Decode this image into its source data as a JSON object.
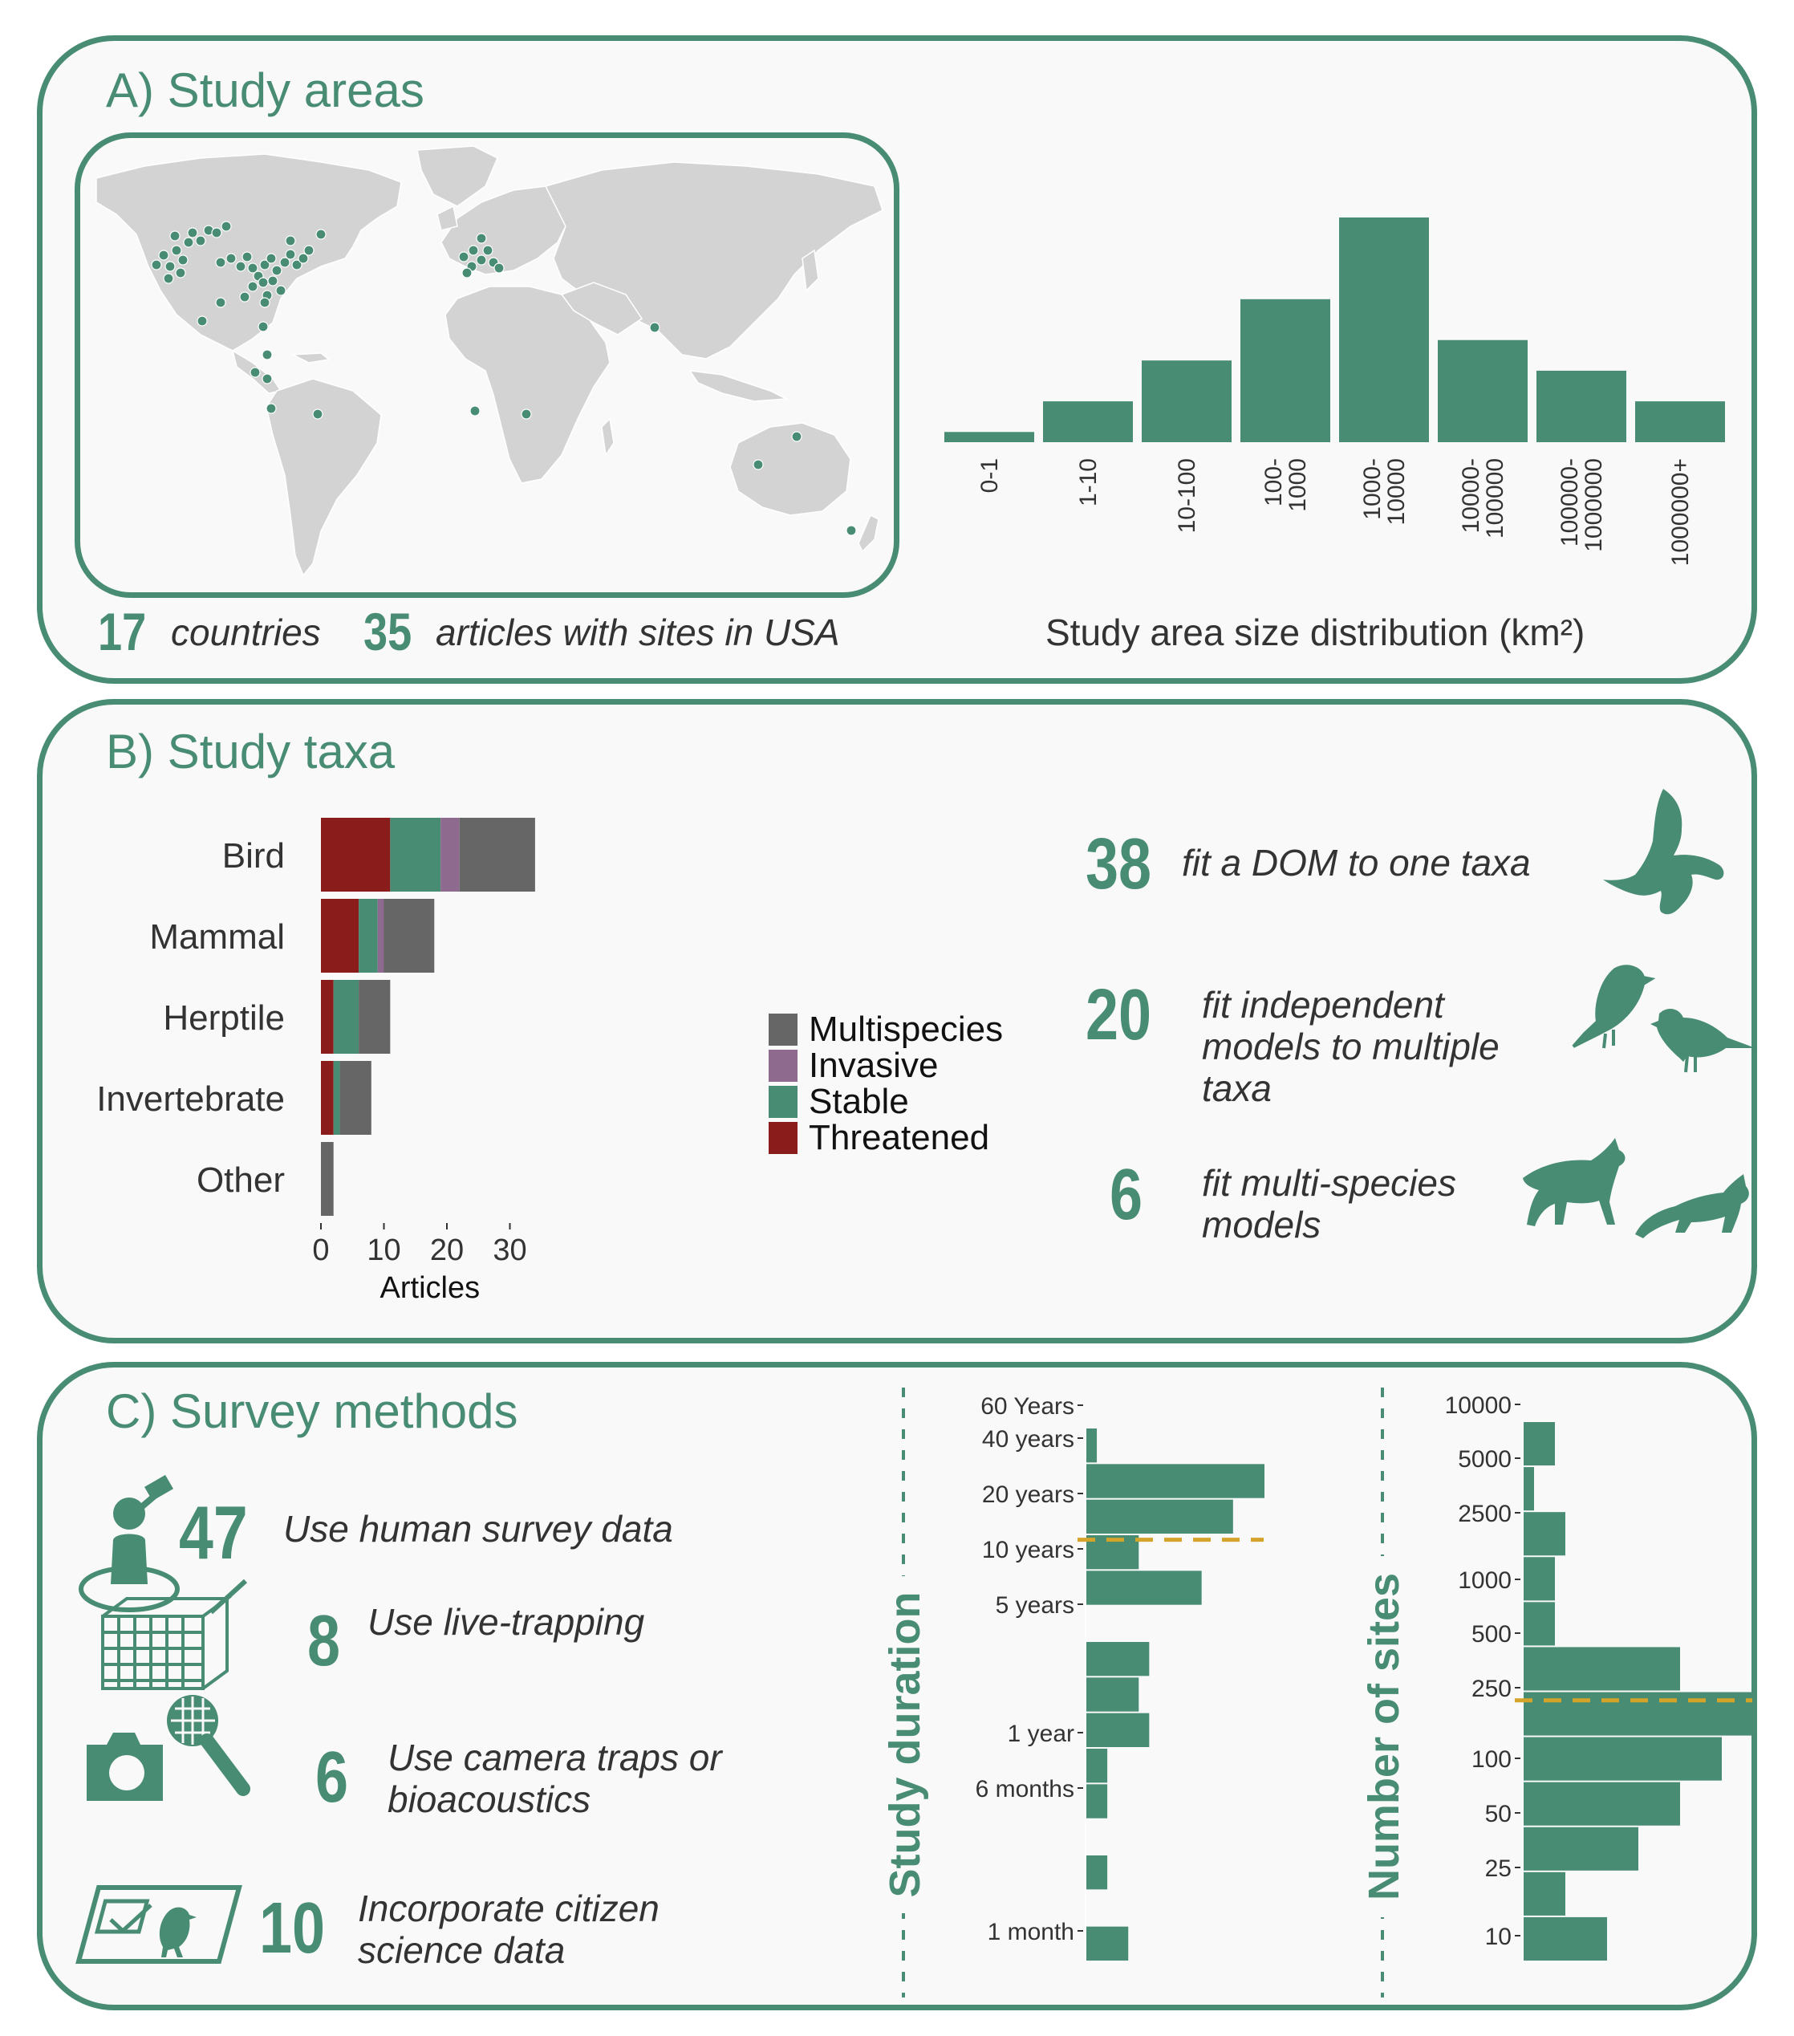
{
  "panelA": {
    "title": "A) Study areas",
    "countries_num": "17",
    "countries_text": "countries",
    "usa_num": "35",
    "usa_text": "articles with sites in USA",
    "hist_caption": "Study area size distribution (km²)"
  },
  "panelB": {
    "title": "B) Study taxa",
    "stat1_num": "38",
    "stat1_text": "fit a DOM to one taxa",
    "stat2_num": "20",
    "stat2_line1": "fit independent",
    "stat2_line2": "models to multiple",
    "stat2_line3": "taxa",
    "stat3_num": "6",
    "stat3_line1": "fit multi-species",
    "stat3_line2": "models"
  },
  "panelC": {
    "title": "C) Survey methods",
    "m1_num": "47",
    "m1_text": "Use human survey data",
    "m2_num": "8",
    "m2_text": "Use live-trapping",
    "m3_num": "6",
    "m3_line1": "Use camera traps or",
    "m3_line2": "bioacoustics",
    "m4_num": "10",
    "m4_line1": "Incorporate citizen",
    "m4_line2": "science data"
  },
  "colors": {
    "green": "#478c73",
    "threatened": "#8b1c1c",
    "invasive": "#8e6a8f",
    "multispecies": "#666666",
    "median": "#d4a42a",
    "map_land": "#d3d3d3"
  },
  "icons": [
    "bird-flying-icon",
    "two-birds-icon",
    "two-canids-icon",
    "observer-binoculars-icon",
    "live-trap-icon",
    "camera-icon",
    "microphone-icon",
    "checklist-bird-icon"
  ],
  "chart_data": [
    {
      "type": "bar",
      "categories": [
        "0-1",
        "1-10",
        "10-100",
        "100-\n1000",
        "1000-\n10000",
        "10000-\n100000",
        "100000-\n1000000",
        "1000000+"
      ],
      "values": [
        1,
        4,
        8,
        14,
        22,
        10,
        7,
        4
      ],
      "xlabel": "Study area size distribution (km²)",
      "ylim": [
        0,
        22
      ]
    },
    {
      "type": "bar",
      "orientation": "horizontal",
      "stacked": true,
      "categories": [
        "Bird",
        "Mammal",
        "Herptile",
        "Invertebrate",
        "Other"
      ],
      "series": [
        {
          "name": "Threatened",
          "values": [
            11,
            6,
            2,
            2,
            0
          ]
        },
        {
          "name": "Stable",
          "values": [
            8,
            3,
            4,
            1,
            0
          ]
        },
        {
          "name": "Invasive",
          "values": [
            3,
            1,
            0,
            0,
            0
          ]
        },
        {
          "name": "Multispecies",
          "values": [
            12,
            8,
            5,
            5,
            2
          ]
        }
      ],
      "legend_order": [
        "Multispecies",
        "Invasive",
        "Stable",
        "Threatened"
      ],
      "xlabel": "Articles",
      "xticks": [
        "0",
        "10",
        "20",
        "30"
      ],
      "xlim": [
        0,
        35
      ]
    },
    {
      "type": "bar",
      "orientation": "horizontal",
      "title": "Study duration",
      "yticks": [
        "60 Years",
        "40 years",
        "20 years",
        "10 years",
        "5 years",
        "1 year",
        "6 months",
        "1 month"
      ],
      "bin_counts": [
        1,
        17,
        14,
        5,
        11,
        0,
        6,
        5,
        6,
        2,
        2,
        0,
        2,
        0,
        4
      ],
      "median_bin": 3.15,
      "x_max": 17
    },
    {
      "type": "bar",
      "orientation": "horizontal",
      "title": "Number of sites",
      "yticks": [
        "10000",
        "5000",
        "2500",
        "1000",
        "500",
        "250",
        "100",
        "50",
        "25",
        "10"
      ],
      "bin_counts": [
        3,
        1,
        4,
        3,
        3,
        15,
        22,
        19,
        15,
        11,
        4,
        8
      ],
      "median_bin": 6.2,
      "x_max": 22
    }
  ]
}
